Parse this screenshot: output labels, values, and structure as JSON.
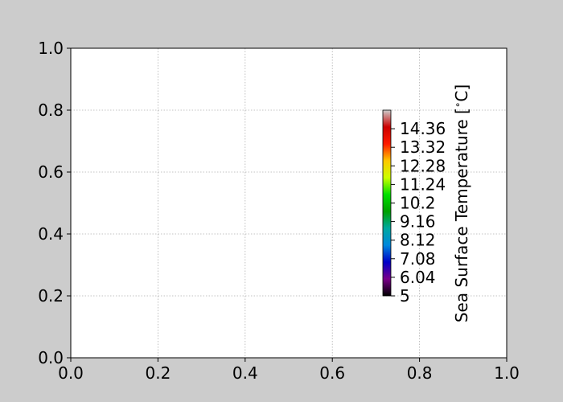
{
  "chart_data": {
    "type": "scatter",
    "title": "",
    "xlabel": "",
    "ylabel": "",
    "xlim": [
      0.0,
      1.0
    ],
    "ylim": [
      0.0,
      1.0
    ],
    "x_ticks": [
      "0.0",
      "0.2",
      "0.4",
      "0.6",
      "0.8",
      "1.0"
    ],
    "y_ticks": [
      "0.0",
      "0.2",
      "0.4",
      "0.6",
      "0.8",
      "1.0"
    ],
    "grid": true,
    "series": [],
    "colorbar": {
      "label": "Sea Surface Temperature [$^\\circ$C]",
      "label_text": "Sea Surface Temperature [",
      "label_degree": "∘",
      "label_unit": "C]",
      "range": [
        5,
        15.4
      ],
      "ticks": [
        "5",
        "6.04",
        "7.08",
        "8.12",
        "9.16",
        "10.2",
        "11.24",
        "12.28",
        "13.32",
        "14.36"
      ],
      "colormap": "nipy_spectral",
      "colors": [
        "#000000",
        "#7a008a",
        "#0000c8",
        "#0088dd",
        "#00a8a0",
        "#00a000",
        "#00e000",
        "#ccff00",
        "#ffc800",
        "#ff1a00",
        "#cc0000",
        "#cccccc"
      ]
    },
    "colors": {
      "figure_background": "#cccccc",
      "axes_background": "#ffffff",
      "grid": "#b0b0b0"
    }
  }
}
